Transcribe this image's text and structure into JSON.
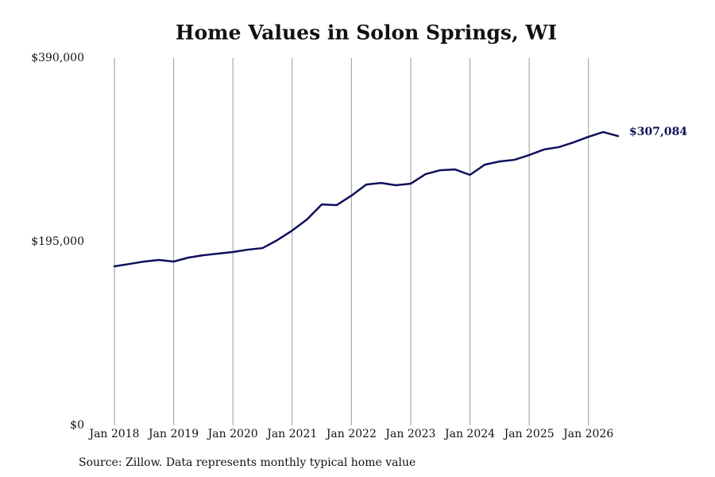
{
  "chart_data": {
    "type": "line",
    "title": "Home Values in Solon Springs, WI",
    "source": "Source: Zillow. Data represents monthly typical home value",
    "end_label": "$307,084",
    "color": "#0f0f5c",
    "grid": true,
    "x": [
      2018,
      2018.25,
      2018.5,
      2018.75,
      2019,
      2019.25,
      2019.5,
      2019.75,
      2020,
      2020.25,
      2020.5,
      2020.75,
      2021,
      2021.25,
      2021.5,
      2021.75,
      2022,
      2022.25,
      2022.5,
      2022.75,
      2023,
      2023.25,
      2023.5,
      2023.75,
      2024,
      2024.25,
      2024.5,
      2024.75,
      2025,
      2025.25,
      2025.5,
      2025.75,
      2026,
      2026.25,
      2026.5
    ],
    "values": [
      168800,
      171300,
      173900,
      175600,
      173900,
      178100,
      180600,
      182300,
      184000,
      186500,
      188200,
      196700,
      206800,
      218600,
      234600,
      233800,
      243900,
      255700,
      257400,
      254900,
      256600,
      266700,
      270900,
      271700,
      265900,
      276800,
      280200,
      281900,
      287000,
      292900,
      295400,
      300500,
      306400,
      311400,
      307084
    ],
    "xlim": [
      2018,
      2026.5
    ],
    "xticks": [
      {
        "value": 2018,
        "label": "Jan 2018"
      },
      {
        "value": 2019,
        "label": "Jan 2019"
      },
      {
        "value": 2020,
        "label": "Jan 2020"
      },
      {
        "value": 2021,
        "label": "Jan 2021"
      },
      {
        "value": 2022,
        "label": "Jan 2022"
      },
      {
        "value": 2023,
        "label": "Jan 2023"
      },
      {
        "value": 2024,
        "label": "Jan 2024"
      },
      {
        "value": 2025,
        "label": "Jan 2025"
      },
      {
        "value": 2026,
        "label": "Jan 2026"
      }
    ],
    "ylim": [
      0,
      390000
    ],
    "yticks": [
      {
        "value": 0,
        "label": "$0"
      },
      {
        "value": 195000,
        "label": "$195,000"
      },
      {
        "value": 390000,
        "label": "$390,000"
      }
    ]
  }
}
